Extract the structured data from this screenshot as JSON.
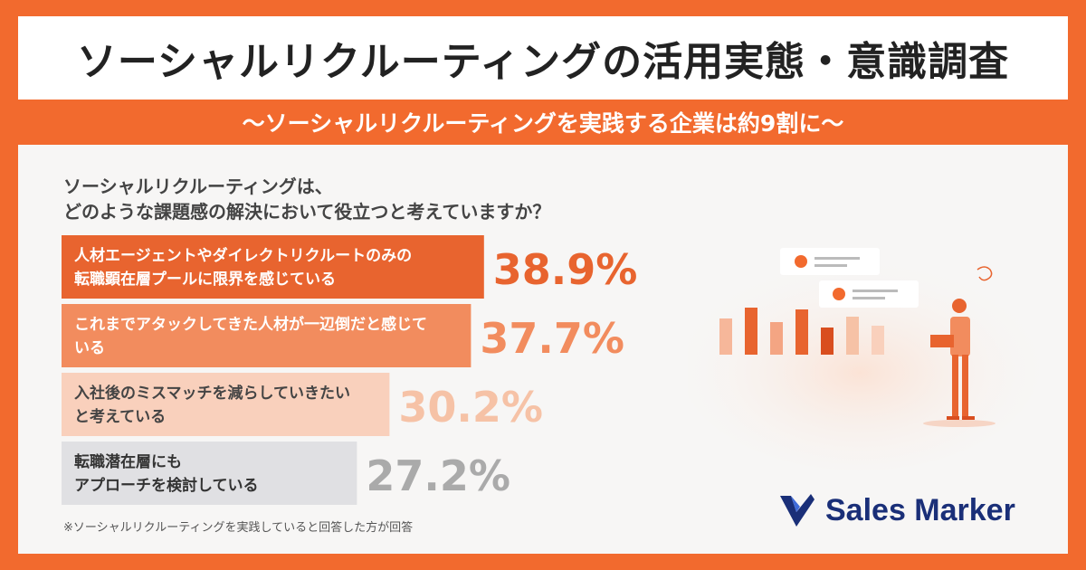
{
  "title": "ソーシャルリクルーティングの活用実態・意識調査",
  "subtitle": "〜ソーシャルリクルーティングを実践する企業は約9割に〜",
  "question": {
    "line1": "ソーシャルリクルーティングは、",
    "line2": "どのような課題感の解決において役立つと考えていますか？"
  },
  "footnote": "※ソーシャルリクルーティングを実践していると回答した方が回答",
  "logo": {
    "text": "Sales Marker",
    "icon": "sales-marker-check-icon",
    "color": "#1A2F78"
  },
  "colors": {
    "frame": "#F26A2E",
    "panel": "#F7F6F5"
  },
  "illustration": {
    "icon": "person-with-laptop-and-bar-chart-icon"
  },
  "chart_data": {
    "type": "bar",
    "orientation": "horizontal",
    "categories": [
      [
        "人材エージェントやダイレクトリクルートのみの",
        "転職顕在層プールに限界を感じている"
      ],
      [
        "これまでアタックしてきた人材が一辺倒だと感じて",
        "いる"
      ],
      [
        "入社後のミスマッチを減らしていきたい",
        "と考えている"
      ],
      [
        "転職潜在層にも",
        "アプローチを検討している"
      ]
    ],
    "values": [
      38.9,
      37.7,
      30.2,
      27.2
    ],
    "value_labels": [
      "38.9%",
      "37.7%",
      "30.2%",
      "27.2%"
    ],
    "unit": "%",
    "xlim": [
      0,
      50
    ],
    "bar_colors": [
      "#E8642F",
      "#F28C5E",
      "#F9D0BC",
      "#E0E0E3"
    ],
    "label_colors": [
      "#ffffff",
      "#ffffff",
      "#444444",
      "#333333"
    ],
    "value_colors": [
      "#E8642F",
      "#F28C5E",
      "#F6C2A6",
      "#AAAAAA"
    ],
    "grid": false,
    "legend": "none"
  }
}
